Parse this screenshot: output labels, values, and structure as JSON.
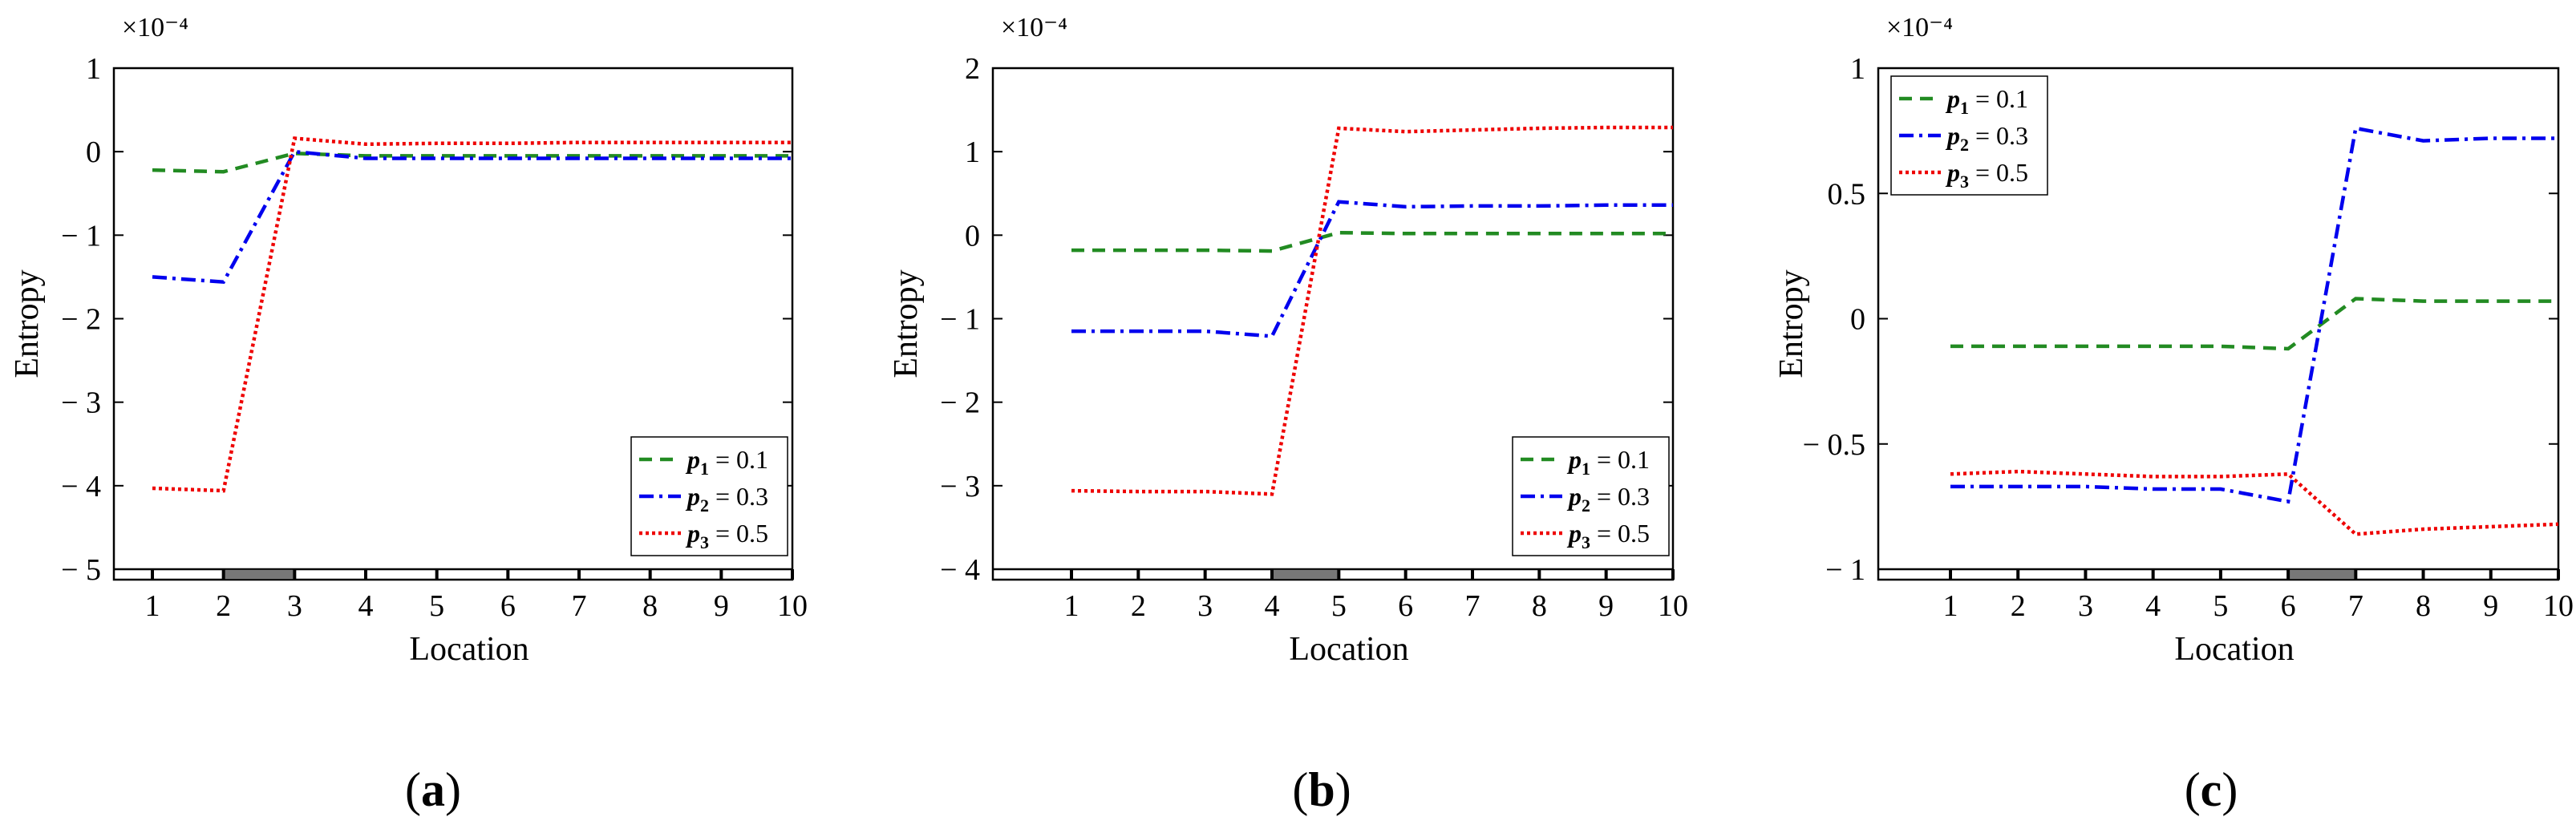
{
  "chart_data": [
    {
      "type": "line",
      "panel_label": "(a)",
      "xlabel": "Location",
      "ylabel": "Entropy",
      "exponent_label": "×10⁻⁴",
      "x": [
        1,
        2,
        3,
        4,
        5,
        6,
        7,
        8,
        9,
        10
      ],
      "xticks": [
        "1",
        "2",
        "3",
        "4",
        "5",
        "6",
        "7",
        "8",
        "9",
        "10"
      ],
      "ylim": [
        -5,
        1
      ],
      "yticks": [
        1,
        0,
        -1,
        -2,
        -3,
        -4,
        -5
      ],
      "ytick_labels": [
        "1",
        "0",
        "− 1",
        "− 2",
        "− 3",
        "− 4",
        "− 5"
      ],
      "highlight_interval": [
        2,
        3
      ],
      "legend_position": "bottom-right",
      "series": [
        {
          "name": "p1 = 0.1",
          "sym": "p",
          "sub": "1",
          "val": " = 0.1",
          "color": "#228B22",
          "dash": "16,10",
          "values": [
            -0.22,
            -0.24,
            -0.02,
            -0.05,
            -0.05,
            -0.05,
            -0.05,
            -0.05,
            -0.05,
            -0.05
          ]
        },
        {
          "name": "p2 = 0.3",
          "sym": "p",
          "sub": "2",
          "val": " = 0.3",
          "color": "#0000EE",
          "dash": "18,7,4,7",
          "values": [
            -1.5,
            -1.56,
            0.0,
            -0.08,
            -0.08,
            -0.08,
            -0.08,
            -0.08,
            -0.08,
            -0.08
          ]
        },
        {
          "name": "p3 = 0.5",
          "sym": "p",
          "sub": "3",
          "val": " = 0.5",
          "color": "#EE0000",
          "dash": "4,4",
          "values": [
            -4.03,
            -4.06,
            0.16,
            0.09,
            0.1,
            0.1,
            0.11,
            0.11,
            0.11,
            0.11
          ]
        }
      ]
    },
    {
      "type": "line",
      "panel_label": "(b)",
      "xlabel": "Location",
      "ylabel": "Entropy",
      "exponent_label": "×10⁻⁴",
      "x": [
        1,
        2,
        3,
        4,
        5,
        6,
        7,
        8,
        9,
        10
      ],
      "xticks": [
        "1",
        "2",
        "3",
        "4",
        "5",
        "6",
        "7",
        "8",
        "9",
        "10"
      ],
      "ylim": [
        -4,
        2
      ],
      "yticks": [
        2,
        1,
        0,
        -1,
        -2,
        -3,
        -4
      ],
      "ytick_labels": [
        "2",
        "1",
        "0",
        "− 1",
        "− 2",
        "− 3",
        "− 4"
      ],
      "highlight_interval": [
        4,
        5
      ],
      "legend_position": "bottom-right",
      "series": [
        {
          "name": "p1 = 0.1",
          "sym": "p",
          "sub": "1",
          "val": " = 0.1",
          "color": "#228B22",
          "dash": "16,10",
          "values": [
            -0.18,
            -0.18,
            -0.18,
            -0.19,
            0.03,
            0.02,
            0.02,
            0.02,
            0.02,
            0.02
          ]
        },
        {
          "name": "p2 = 0.3",
          "sym": "p",
          "sub": "2",
          "val": " = 0.3",
          "color": "#0000EE",
          "dash": "18,7,4,7",
          "values": [
            -1.15,
            -1.15,
            -1.15,
            -1.21,
            0.4,
            0.34,
            0.35,
            0.35,
            0.36,
            0.36
          ]
        },
        {
          "name": "p3 = 0.5",
          "sym": "p",
          "sub": "3",
          "val": " = 0.5",
          "color": "#EE0000",
          "dash": "4,4",
          "values": [
            -3.06,
            -3.07,
            -3.07,
            -3.1,
            1.28,
            1.24,
            1.26,
            1.28,
            1.29,
            1.29
          ]
        }
      ]
    },
    {
      "type": "line",
      "panel_label": "(c)",
      "xlabel": "Location",
      "ylabel": "Entropy",
      "exponent_label": "×10⁻⁴",
      "x": [
        1,
        2,
        3,
        4,
        5,
        6,
        7,
        8,
        9,
        10
      ],
      "xticks": [
        "1",
        "2",
        "3",
        "4",
        "5",
        "6",
        "7",
        "8",
        "9",
        "10"
      ],
      "ylim": [
        -1,
        1
      ],
      "yticks": [
        1,
        0.5,
        0,
        -0.5,
        -1
      ],
      "ytick_labels": [
        "1",
        "0.5",
        "0",
        "− 0.5",
        "− 1"
      ],
      "highlight_interval": [
        6,
        7
      ],
      "legend_position": "top-left",
      "series": [
        {
          "name": "p1 = 0.1",
          "sym": "p",
          "sub": "1",
          "val": " = 0.1",
          "color": "#228B22",
          "dash": "16,10",
          "values": [
            -0.11,
            -0.11,
            -0.11,
            -0.11,
            -0.11,
            -0.12,
            0.08,
            0.07,
            0.07,
            0.07
          ]
        },
        {
          "name": "p2 = 0.3",
          "sym": "p",
          "sub": "2",
          "val": " = 0.3",
          "color": "#0000EE",
          "dash": "18,7,4,7",
          "values": [
            -0.67,
            -0.67,
            -0.67,
            -0.68,
            -0.68,
            -0.73,
            0.76,
            0.71,
            0.72,
            0.72
          ]
        },
        {
          "name": "p3 = 0.5",
          "sym": "p",
          "sub": "3",
          "val": " = 0.5",
          "color": "#EE0000",
          "dash": "4,4",
          "values": [
            -0.62,
            -0.61,
            -0.62,
            -0.63,
            -0.63,
            -0.62,
            -0.86,
            -0.84,
            -0.83,
            -0.82
          ]
        }
      ]
    }
  ]
}
